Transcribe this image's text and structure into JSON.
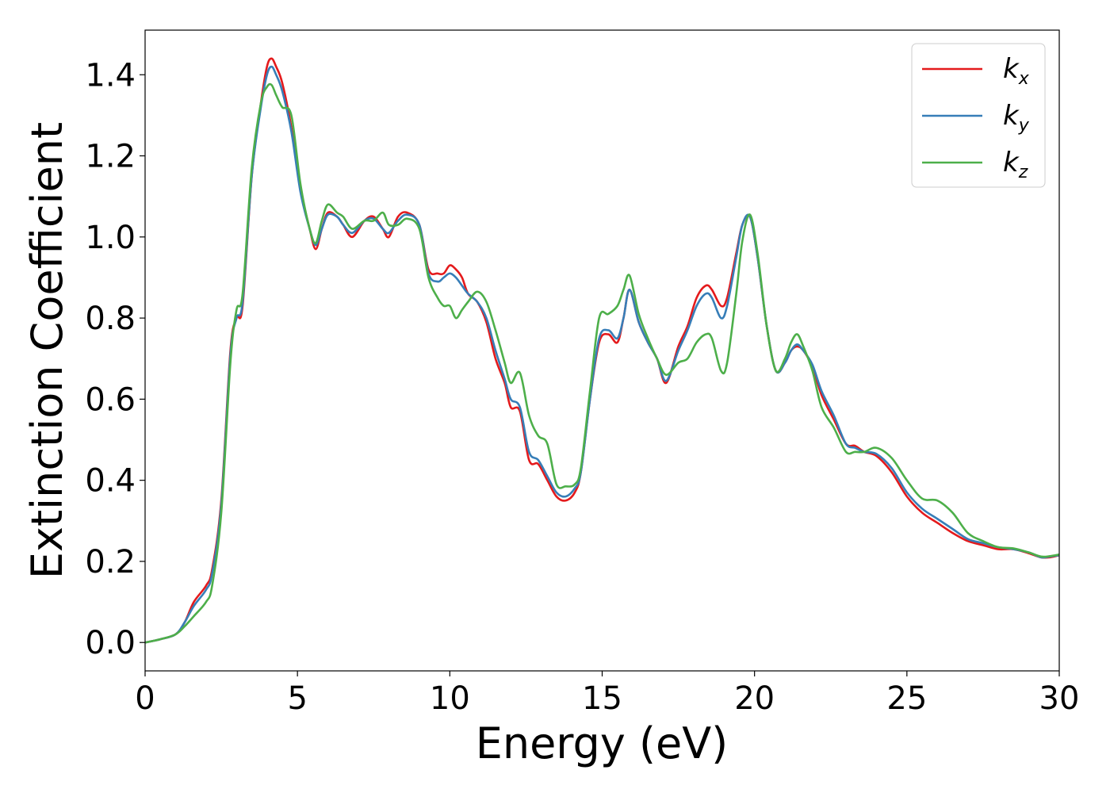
{
  "chart_data": {
    "type": "line",
    "title": "",
    "xlabel": "Energy (eV)",
    "ylabel": "Extinction Coefficient",
    "xlim": [
      0,
      30
    ],
    "ylim": [
      -0.07,
      1.51
    ],
    "xticks": [
      "0",
      "5",
      "10",
      "15",
      "20",
      "25",
      "30"
    ],
    "yticks": [
      "0.0",
      "0.2",
      "0.4",
      "0.6",
      "0.8",
      "1.0",
      "1.2",
      "1.4"
    ],
    "grid": false,
    "legend_position": "top-right",
    "series": [
      {
        "name": "k",
        "subscript": "x",
        "color": "#e41a1c",
        "x": [
          0,
          0.5,
          1.0,
          1.3,
          1.6,
          2.0,
          2.2,
          2.5,
          2.8,
          3.0,
          3.2,
          3.5,
          3.8,
          4.0,
          4.15,
          4.3,
          4.5,
          4.8,
          5.1,
          5.4,
          5.6,
          5.8,
          6.0,
          6.3,
          6.5,
          6.8,
          7.2,
          7.5,
          7.8,
          8.0,
          8.3,
          8.6,
          9.0,
          9.3,
          9.6,
          9.8,
          10.0,
          10.2,
          10.4,
          10.6,
          10.9,
          11.2,
          11.5,
          11.8,
          12.0,
          12.3,
          12.6,
          12.9,
          13.2,
          13.5,
          13.8,
          14.1,
          14.3,
          14.6,
          14.9,
          15.2,
          15.5,
          15.7,
          15.9,
          16.2,
          16.5,
          16.8,
          17.1,
          17.5,
          17.8,
          18.1,
          18.4,
          18.6,
          18.9,
          19.1,
          19.4,
          19.6,
          19.85,
          20.1,
          20.4,
          20.7,
          21.0,
          21.2,
          21.4,
          21.6,
          21.9,
          22.2,
          22.6,
          23.0,
          23.3,
          23.6,
          24.0,
          24.5,
          25.0,
          25.5,
          26.0,
          26.5,
          27.0,
          27.5,
          28.0,
          28.5,
          29.0,
          29.4,
          29.7,
          30.0
        ],
        "y": [
          0.0,
          0.008,
          0.02,
          0.05,
          0.1,
          0.14,
          0.18,
          0.35,
          0.72,
          0.8,
          0.83,
          1.15,
          1.33,
          1.42,
          1.44,
          1.42,
          1.38,
          1.27,
          1.12,
          1.02,
          0.97,
          1.02,
          1.06,
          1.05,
          1.03,
          1.0,
          1.04,
          1.05,
          1.02,
          1.0,
          1.05,
          1.06,
          1.03,
          0.92,
          0.91,
          0.91,
          0.93,
          0.92,
          0.9,
          0.86,
          0.84,
          0.79,
          0.7,
          0.64,
          0.58,
          0.57,
          0.45,
          0.44,
          0.4,
          0.36,
          0.35,
          0.37,
          0.42,
          0.6,
          0.74,
          0.76,
          0.74,
          0.8,
          0.87,
          0.79,
          0.74,
          0.7,
          0.64,
          0.73,
          0.78,
          0.85,
          0.88,
          0.87,
          0.83,
          0.85,
          0.96,
          1.03,
          1.05,
          0.95,
          0.78,
          0.67,
          0.69,
          0.72,
          0.73,
          0.72,
          0.68,
          0.61,
          0.55,
          0.49,
          0.485,
          0.47,
          0.46,
          0.42,
          0.36,
          0.32,
          0.295,
          0.27,
          0.25,
          0.24,
          0.23,
          0.23,
          0.22,
          0.21,
          0.21,
          0.215
        ]
      },
      {
        "name": "k",
        "subscript": "y",
        "color": "#377eb8",
        "x": [
          0,
          0.5,
          1.0,
          1.3,
          1.6,
          2.0,
          2.2,
          2.5,
          2.8,
          3.0,
          3.2,
          3.5,
          3.8,
          4.0,
          4.15,
          4.3,
          4.5,
          4.8,
          5.1,
          5.4,
          5.6,
          5.8,
          6.0,
          6.3,
          6.5,
          6.8,
          7.2,
          7.5,
          7.8,
          8.0,
          8.3,
          8.6,
          9.0,
          9.3,
          9.6,
          9.8,
          10.0,
          10.2,
          10.4,
          10.6,
          10.9,
          11.2,
          11.5,
          11.8,
          12.0,
          12.3,
          12.6,
          12.9,
          13.2,
          13.5,
          13.8,
          14.1,
          14.3,
          14.6,
          14.9,
          15.2,
          15.5,
          15.7,
          15.9,
          16.2,
          16.5,
          16.8,
          17.1,
          17.5,
          17.8,
          18.1,
          18.4,
          18.6,
          18.9,
          19.1,
          19.4,
          19.6,
          19.85,
          20.1,
          20.4,
          20.7,
          21.0,
          21.2,
          21.4,
          21.6,
          21.9,
          22.2,
          22.6,
          23.0,
          23.3,
          23.6,
          24.0,
          24.5,
          25.0,
          25.5,
          26.0,
          26.5,
          27.0,
          27.5,
          28.0,
          28.5,
          29.0,
          29.4,
          29.7,
          30.0
        ],
        "y": [
          0.0,
          0.008,
          0.02,
          0.05,
          0.09,
          0.13,
          0.17,
          0.34,
          0.71,
          0.8,
          0.84,
          1.15,
          1.32,
          1.4,
          1.42,
          1.4,
          1.36,
          1.26,
          1.11,
          1.02,
          0.98,
          1.02,
          1.055,
          1.05,
          1.03,
          1.01,
          1.04,
          1.045,
          1.02,
          1.01,
          1.04,
          1.055,
          1.03,
          0.91,
          0.89,
          0.9,
          0.91,
          0.9,
          0.88,
          0.86,
          0.84,
          0.8,
          0.72,
          0.65,
          0.6,
          0.58,
          0.47,
          0.45,
          0.41,
          0.37,
          0.36,
          0.38,
          0.42,
          0.6,
          0.75,
          0.77,
          0.75,
          0.8,
          0.87,
          0.79,
          0.74,
          0.7,
          0.645,
          0.72,
          0.77,
          0.83,
          0.86,
          0.85,
          0.8,
          0.83,
          0.95,
          1.03,
          1.05,
          0.95,
          0.78,
          0.67,
          0.69,
          0.72,
          0.735,
          0.72,
          0.685,
          0.62,
          0.56,
          0.49,
          0.48,
          0.47,
          0.465,
          0.43,
          0.37,
          0.33,
          0.305,
          0.28,
          0.255,
          0.245,
          0.235,
          0.23,
          0.222,
          0.21,
          0.212,
          0.215
        ]
      },
      {
        "name": "k",
        "subscript": "z",
        "color": "#4daf4a",
        "x": [
          0,
          0.5,
          1.0,
          1.3,
          1.6,
          2.0,
          2.2,
          2.5,
          2.8,
          3.0,
          3.2,
          3.5,
          3.8,
          4.0,
          4.15,
          4.3,
          4.5,
          4.8,
          5.1,
          5.4,
          5.6,
          5.8,
          6.0,
          6.3,
          6.5,
          6.8,
          7.2,
          7.5,
          7.8,
          8.0,
          8.3,
          8.6,
          9.0,
          9.3,
          9.6,
          9.8,
          10.0,
          10.2,
          10.4,
          10.6,
          10.9,
          11.2,
          11.5,
          11.8,
          12.0,
          12.3,
          12.6,
          12.9,
          13.2,
          13.5,
          13.8,
          14.1,
          14.3,
          14.6,
          14.9,
          15.2,
          15.5,
          15.7,
          15.9,
          16.2,
          16.5,
          16.8,
          17.1,
          17.5,
          17.8,
          18.1,
          18.4,
          18.6,
          18.9,
          19.1,
          19.4,
          19.6,
          19.85,
          20.1,
          20.4,
          20.7,
          21.0,
          21.2,
          21.4,
          21.6,
          21.9,
          22.2,
          22.6,
          23.0,
          23.3,
          23.6,
          24.0,
          24.5,
          25.0,
          25.5,
          26.0,
          26.5,
          27.0,
          27.5,
          28.0,
          28.5,
          29.0,
          29.4,
          29.7,
          30.0
        ],
        "y": [
          0.0,
          0.008,
          0.02,
          0.04,
          0.065,
          0.1,
          0.14,
          0.32,
          0.69,
          0.82,
          0.86,
          1.17,
          1.33,
          1.37,
          1.375,
          1.35,
          1.32,
          1.3,
          1.13,
          1.02,
          0.985,
          1.04,
          1.08,
          1.06,
          1.05,
          1.02,
          1.04,
          1.04,
          1.06,
          1.03,
          1.03,
          1.045,
          1.02,
          0.9,
          0.85,
          0.83,
          0.83,
          0.8,
          0.82,
          0.84,
          0.865,
          0.84,
          0.77,
          0.69,
          0.64,
          0.665,
          0.56,
          0.51,
          0.49,
          0.39,
          0.385,
          0.39,
          0.43,
          0.62,
          0.8,
          0.81,
          0.83,
          0.87,
          0.905,
          0.81,
          0.75,
          0.7,
          0.66,
          0.69,
          0.7,
          0.74,
          0.76,
          0.75,
          0.67,
          0.69,
          0.86,
          0.99,
          1.055,
          0.96,
          0.78,
          0.67,
          0.7,
          0.74,
          0.76,
          0.73,
          0.67,
          0.58,
          0.53,
          0.47,
          0.47,
          0.47,
          0.48,
          0.455,
          0.4,
          0.355,
          0.35,
          0.32,
          0.27,
          0.25,
          0.235,
          0.232,
          0.222,
          0.212,
          0.213,
          0.217
        ]
      }
    ]
  }
}
